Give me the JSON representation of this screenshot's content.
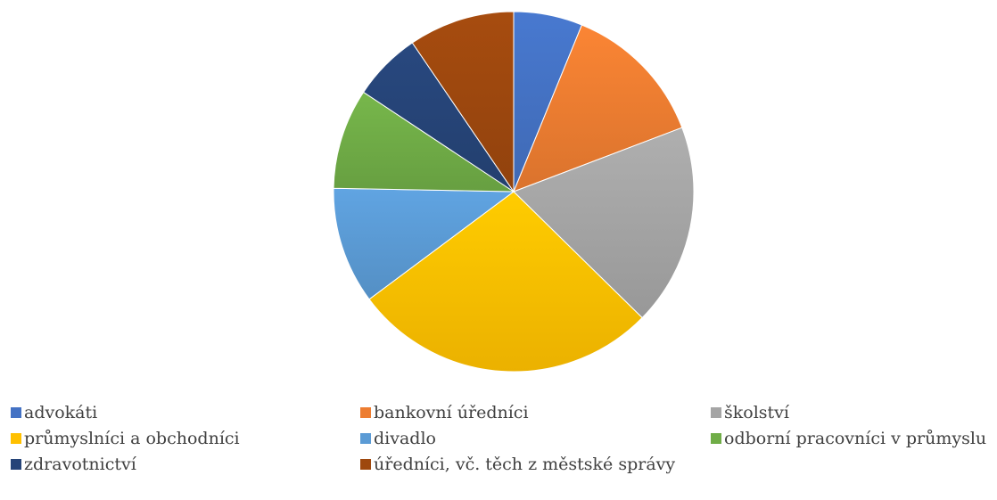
{
  "chart_data": {
    "type": "pie",
    "categories": [
      "advokáti",
      "bankovní úředníci",
      "školství",
      "průmyslníci a obchodníci",
      "divadlo",
      "odborní pracovníci v průmyslu",
      "zdravotnictví",
      "úředníci, vč. těch z městské správy"
    ],
    "values": [
      6.3,
      13.3,
      18.5,
      28.0,
      10.7,
      9.2,
      6.3,
      9.7
    ],
    "colors": [
      "#4472c4",
      "#ed7d31",
      "#a5a5a5",
      "#ffc000",
      "#5b9bd5",
      "#70ad47",
      "#264478",
      "#9e480e"
    ],
    "start_angle_deg": 0,
    "direction": "clockwise",
    "legend_position": "bottom",
    "title": ""
  }
}
